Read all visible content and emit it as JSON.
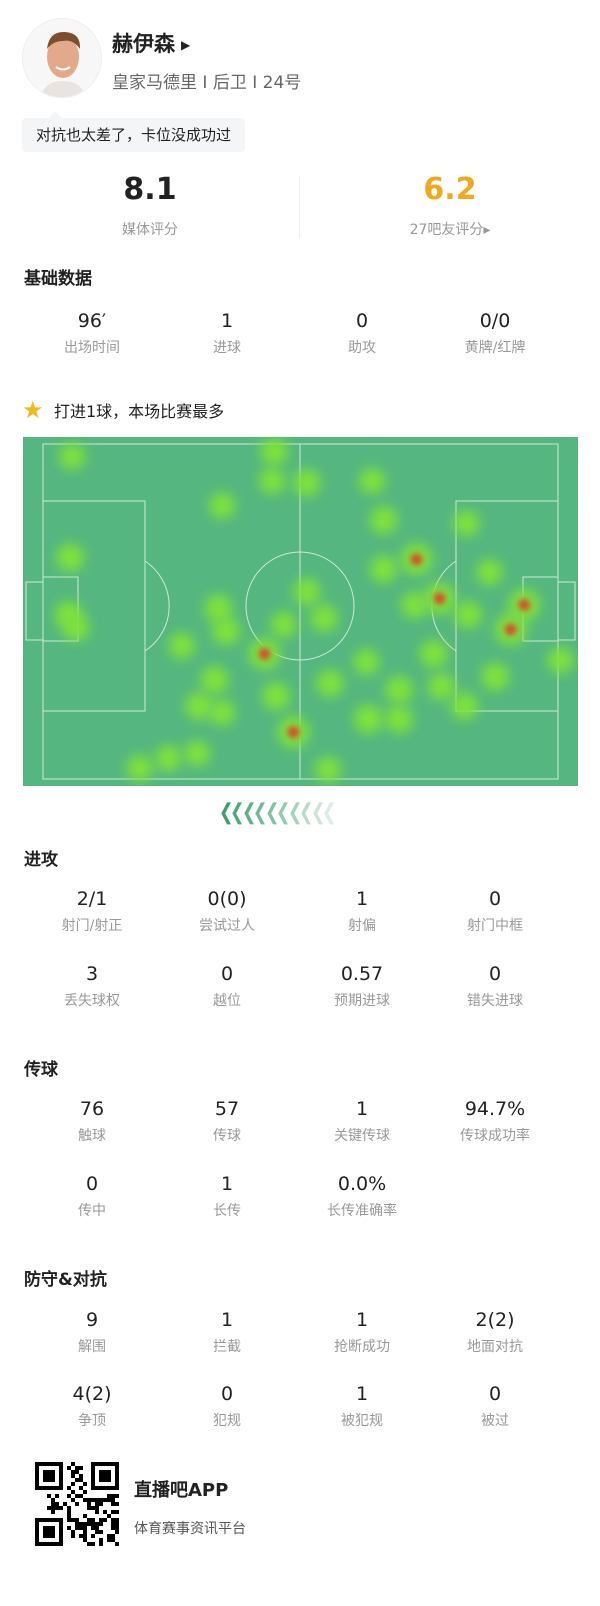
{
  "player": {
    "name": "赫伊森",
    "info": "皇家马德里 I 后卫 I 24号",
    "comment": "对抗也太差了，卡位没成功过"
  },
  "ratings": {
    "media": {
      "value": "8.1",
      "label": "媒体评分",
      "color": "#222222"
    },
    "fans": {
      "value": "6.2",
      "label": "27吧友评分▸",
      "color": "#f2a81d"
    }
  },
  "basic": {
    "title": "基础数据",
    "items": [
      {
        "v": "96′",
        "l": "出场时间"
      },
      {
        "v": "1",
        "l": "进球"
      },
      {
        "v": "0",
        "l": "助攻"
      },
      {
        "v": "0/0",
        "l": "黄牌/红牌"
      }
    ]
  },
  "highlight": {
    "icon": "star-icon",
    "text": "打进1球，本场比赛最多"
  },
  "heatmap": {
    "pitch_color": "#55b67f",
    "hot_color": "#d2502a",
    "warm_color": "#7fe23a"
  },
  "attack": {
    "title": "进攻",
    "rows": [
      [
        {
          "v": "2/1",
          "l": "射门/射正"
        },
        {
          "v": "0(0)",
          "l": "尝试过人"
        },
        {
          "v": "1",
          "l": "射偏"
        },
        {
          "v": "0",
          "l": "射门中框"
        }
      ],
      [
        {
          "v": "3",
          "l": "丢失球权"
        },
        {
          "v": "0",
          "l": "越位"
        },
        {
          "v": "0.57",
          "l": "预期进球"
        },
        {
          "v": "0",
          "l": "错失进球"
        }
      ]
    ]
  },
  "passing": {
    "title": "传球",
    "rows": [
      [
        {
          "v": "76",
          "l": "触球"
        },
        {
          "v": "57",
          "l": "传球"
        },
        {
          "v": "1",
          "l": "关键传球"
        },
        {
          "v": "94.7%",
          "l": "传球成功率"
        }
      ],
      [
        {
          "v": "0",
          "l": "传中"
        },
        {
          "v": "1",
          "l": "长传"
        },
        {
          "v": "0.0%",
          "l": "长传准确率"
        }
      ]
    ]
  },
  "defense": {
    "title": "防守&对抗",
    "rows": [
      [
        {
          "v": "9",
          "l": "解围"
        },
        {
          "v": "1",
          "l": "拦截"
        },
        {
          "v": "1",
          "l": "抢断成功"
        },
        {
          "v": "2(2)",
          "l": "地面对抗"
        }
      ],
      [
        {
          "v": "4(2)",
          "l": "争顶"
        },
        {
          "v": "0",
          "l": "犯规"
        },
        {
          "v": "1",
          "l": "被犯规"
        },
        {
          "v": "0",
          "l": "被过"
        }
      ]
    ]
  },
  "footer": {
    "app": "直播吧APP",
    "tagline": "体育赛事资讯平台"
  }
}
